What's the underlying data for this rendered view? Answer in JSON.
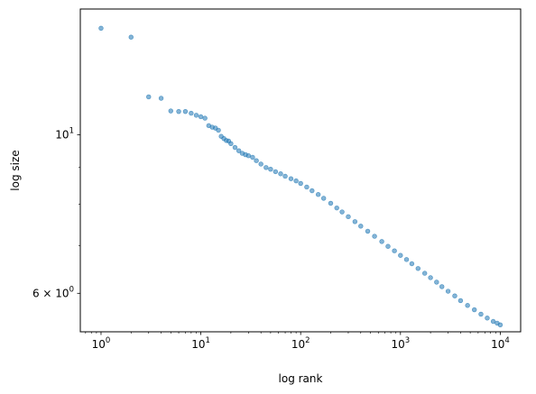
{
  "chart_data": {
    "type": "scatter",
    "title": "",
    "xlabel": "log rank",
    "ylabel": "log size",
    "x_scale": "log",
    "y_scale": "log",
    "xlim": [
      0.62,
      16000
    ],
    "ylim": [
      5.3,
      15.0
    ],
    "grid": false,
    "legend": "none",
    "x_ticks": [
      {
        "value": 1,
        "base": "10",
        "exp": "0"
      },
      {
        "value": 10,
        "base": "10",
        "exp": "1"
      },
      {
        "value": 100,
        "base": "10",
        "exp": "2"
      },
      {
        "value": 1000,
        "base": "10",
        "exp": "3"
      },
      {
        "value": 10000,
        "base": "10",
        "exp": "4"
      }
    ],
    "y_ticks": [
      {
        "value": 6,
        "mantissa": "6",
        "base": "10",
        "exp": "0"
      },
      {
        "value": 10,
        "mantissa": "",
        "base": "10",
        "exp": "1"
      }
    ],
    "y_minor_ticks": [
      7,
      8,
      9
    ],
    "series": [
      {
        "color": "#1f77b4",
        "x": [
          1,
          2,
          3,
          4,
          5,
          6,
          7,
          8,
          9,
          10,
          11,
          12,
          13,
          14,
          15,
          16,
          17,
          18,
          19,
          20,
          22,
          24,
          26,
          28,
          30,
          33,
          36,
          40,
          45,
          50,
          56,
          63,
          70,
          80,
          90,
          100,
          115,
          130,
          150,
          170,
          200,
          230,
          260,
          300,
          350,
          400,
          470,
          550,
          650,
          750,
          870,
          1000,
          1150,
          1300,
          1500,
          1750,
          2000,
          2300,
          2600,
          3000,
          3500,
          4000,
          4700,
          5500,
          6400,
          7400,
          8500,
          9300,
          10000
        ],
        "y": [
          14.1,
          13.7,
          11.3,
          11.25,
          10.8,
          10.78,
          10.78,
          10.72,
          10.65,
          10.6,
          10.55,
          10.3,
          10.25,
          10.22,
          10.15,
          9.95,
          9.88,
          9.82,
          9.8,
          9.72,
          9.6,
          9.5,
          9.42,
          9.38,
          9.35,
          9.3,
          9.2,
          9.1,
          9.0,
          8.95,
          8.88,
          8.82,
          8.75,
          8.68,
          8.62,
          8.55,
          8.45,
          8.35,
          8.25,
          8.15,
          8.02,
          7.9,
          7.8,
          7.68,
          7.56,
          7.45,
          7.33,
          7.21,
          7.09,
          6.98,
          6.88,
          6.78,
          6.69,
          6.6,
          6.5,
          6.4,
          6.31,
          6.22,
          6.13,
          6.04,
          5.95,
          5.86,
          5.77,
          5.69,
          5.61,
          5.54,
          5.48,
          5.45,
          5.42
        ]
      }
    ]
  }
}
